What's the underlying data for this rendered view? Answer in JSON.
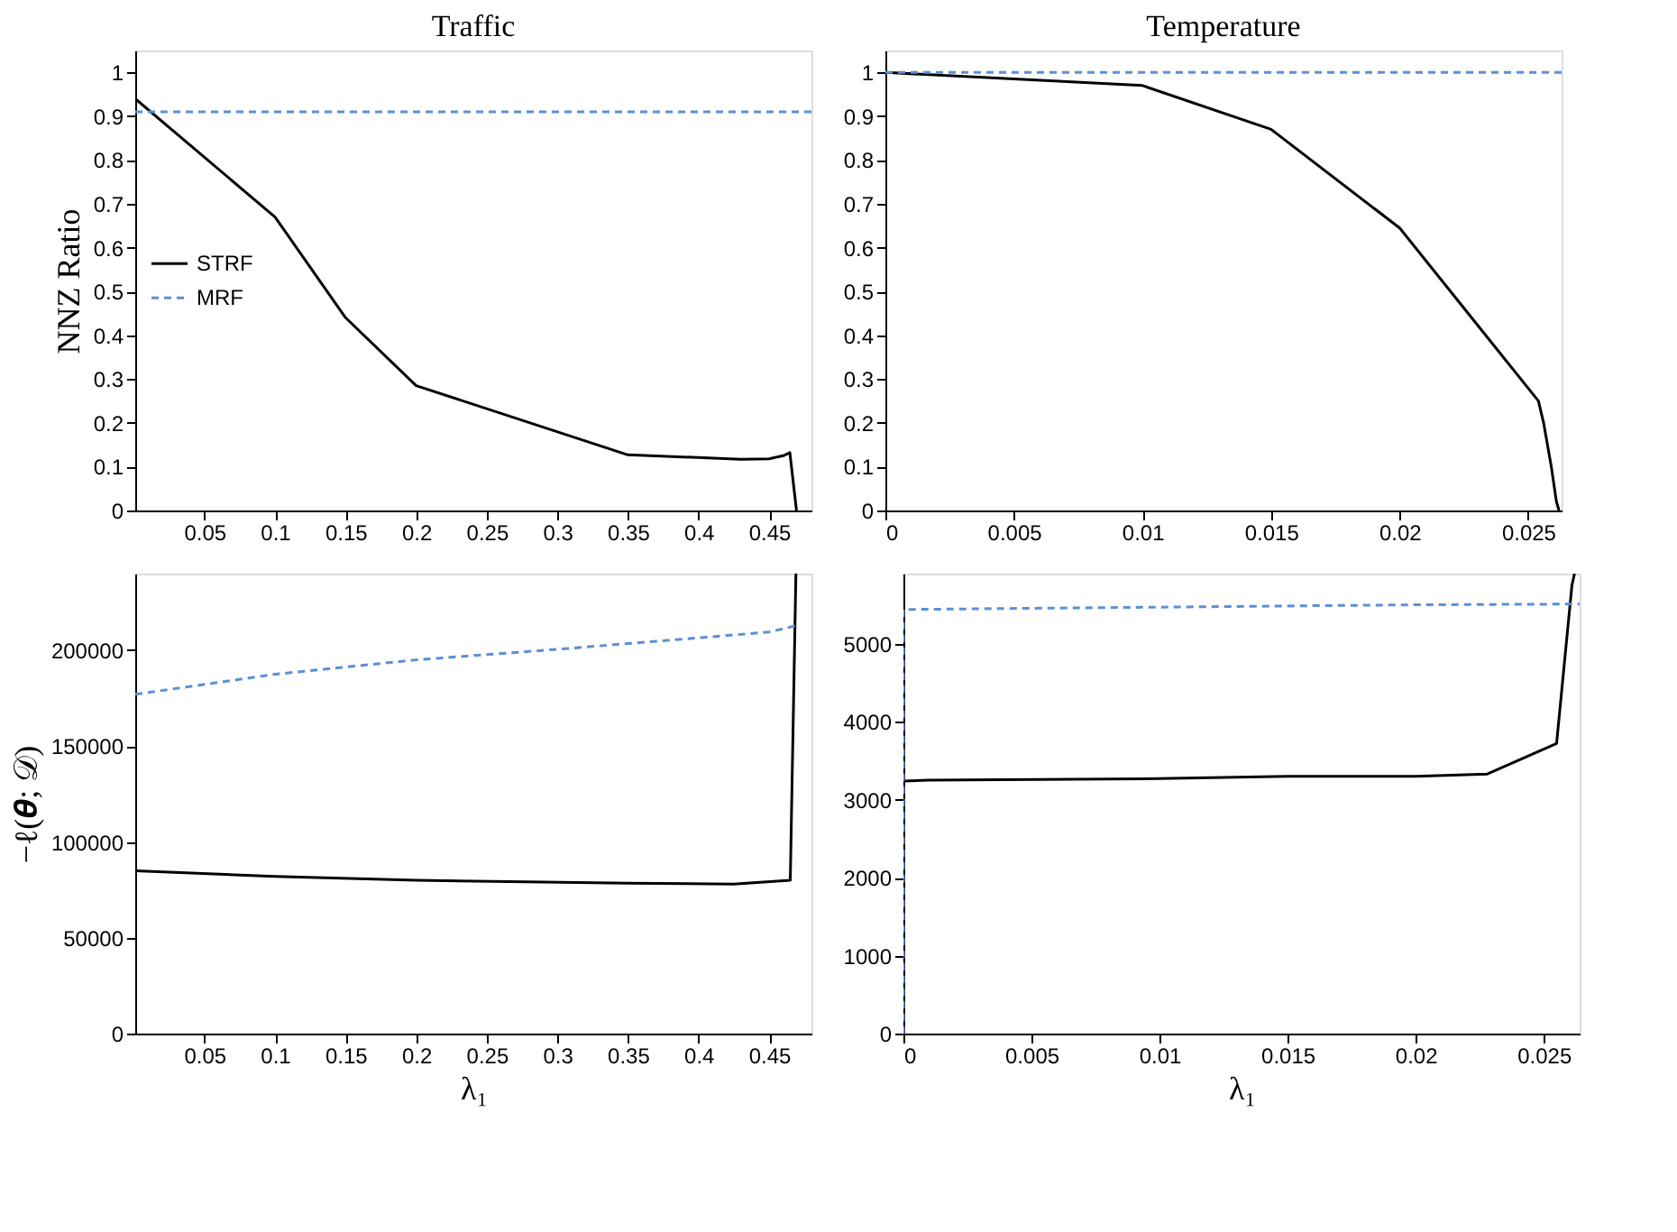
{
  "chart_data": [
    {
      "type": "line",
      "title": "Traffic",
      "ylabel": "NNZ Ratio",
      "xlim": [
        0.001,
        0.48
      ],
      "xticks": [
        0.05,
        0.1,
        0.15,
        0.2,
        0.25,
        0.3,
        0.35,
        0.4,
        0.45
      ],
      "ylim": [
        0,
        1.05
      ],
      "yticks": [
        0,
        0.1,
        0.2,
        0.3,
        0.4,
        0.5,
        0.6,
        0.7,
        0.8,
        0.9,
        1
      ],
      "grid": false,
      "legend": "left",
      "series": [
        {
          "name": "STRF",
          "color": "#000000",
          "line_style": "solid",
          "x": [
            0.001,
            0.1,
            0.15,
            0.2,
            0.35,
            0.43,
            0.45,
            0.46,
            0.4647,
            0.4694
          ],
          "values": [
            0.94,
            0.67,
            0.44,
            0.285,
            0.127,
            0.117,
            0.118,
            0.125,
            0.132,
            0
          ]
        },
        {
          "name": "MRF",
          "color": "#5b8fd6",
          "line_style": "dashed",
          "x": [
            0.001,
            0.48
          ],
          "values": [
            0.91,
            0.91
          ]
        }
      ]
    },
    {
      "type": "line",
      "title": "Temperature",
      "xlim": [
        0,
        0.0263
      ],
      "xticks": [
        0,
        0.005,
        0.01,
        0.015,
        0.02,
        0.025
      ],
      "ylim": [
        0,
        1.05
      ],
      "yticks": [
        0,
        0.1,
        0.2,
        0.3,
        0.4,
        0.5,
        0.6,
        0.7,
        0.8,
        0.9,
        1
      ],
      "grid": false,
      "series": [
        {
          "color": "#000000",
          "line_style": "solid",
          "x": [
            0,
            0.01,
            0.015,
            0.02,
            0.0228,
            0.0254,
            0.0256,
            0.0259,
            0.0261,
            0.0262
          ],
          "values": [
            1,
            0.97,
            0.87,
            0.645,
            0.44,
            0.25,
            0.2,
            0.1,
            0.02,
            0
          ]
        },
        {
          "color": "#5b8fd6",
          "line_style": "dashed",
          "x": [
            0,
            0.0263
          ],
          "values": [
            1,
            1
          ]
        }
      ]
    },
    {
      "type": "line",
      "xlabel": "λ₁",
      "ylabel": "−ℓ(𝜽; 𝒟)",
      "xlim": [
        0.001,
        0.48
      ],
      "xticks": [
        0.05,
        0.1,
        0.15,
        0.2,
        0.25,
        0.3,
        0.35,
        0.4,
        0.45
      ],
      "ylim": [
        0,
        240000
      ],
      "yticks": [
        0,
        50000,
        100000,
        150000,
        200000
      ],
      "grid": false,
      "series": [
        {
          "color": "#000000",
          "line_style": "solid",
          "x": [
            0.001,
            0.1,
            0.2,
            0.35,
            0.425,
            0.465,
            0.469
          ],
          "values": [
            85000,
            82000,
            80000,
            78500,
            78000,
            80000,
            240000
          ]
        },
        {
          "color": "#5b8fd6",
          "line_style": "dashed",
          "x": [
            0.001,
            0.1,
            0.2,
            0.3,
            0.4,
            0.45,
            0.47
          ],
          "values": [
            177000,
            187500,
            195000,
            200500,
            206500,
            209500,
            213000
          ]
        }
      ]
    },
    {
      "type": "line",
      "xlabel": "λ₁",
      "xlim": [
        0,
        0.0264
      ],
      "xticks": [
        0,
        0.005,
        0.01,
        0.015,
        0.02,
        0.025
      ],
      "ylim": [
        0,
        5900
      ],
      "yticks": [
        0,
        1000,
        2000,
        3000,
        4000,
        5000
      ],
      "grid": false,
      "series": [
        {
          "color": "#000000",
          "line_style": "solid",
          "x": [
            0,
            0.001,
            0.01,
            0.015,
            0.02,
            0.0228,
            0.0255,
            0.0261,
            0.0262
          ],
          "values": [
            3240,
            3250,
            3270,
            3300,
            3300,
            3330,
            3720,
            5750,
            5900
          ]
        },
        {
          "color": "#5b8fd6",
          "line_style": "dashed",
          "x": [
            0,
            0,
            0.01,
            0.02,
            0.0264
          ],
          "values": [
            0,
            5440,
            5470,
            5500,
            5510
          ]
        }
      ]
    }
  ]
}
